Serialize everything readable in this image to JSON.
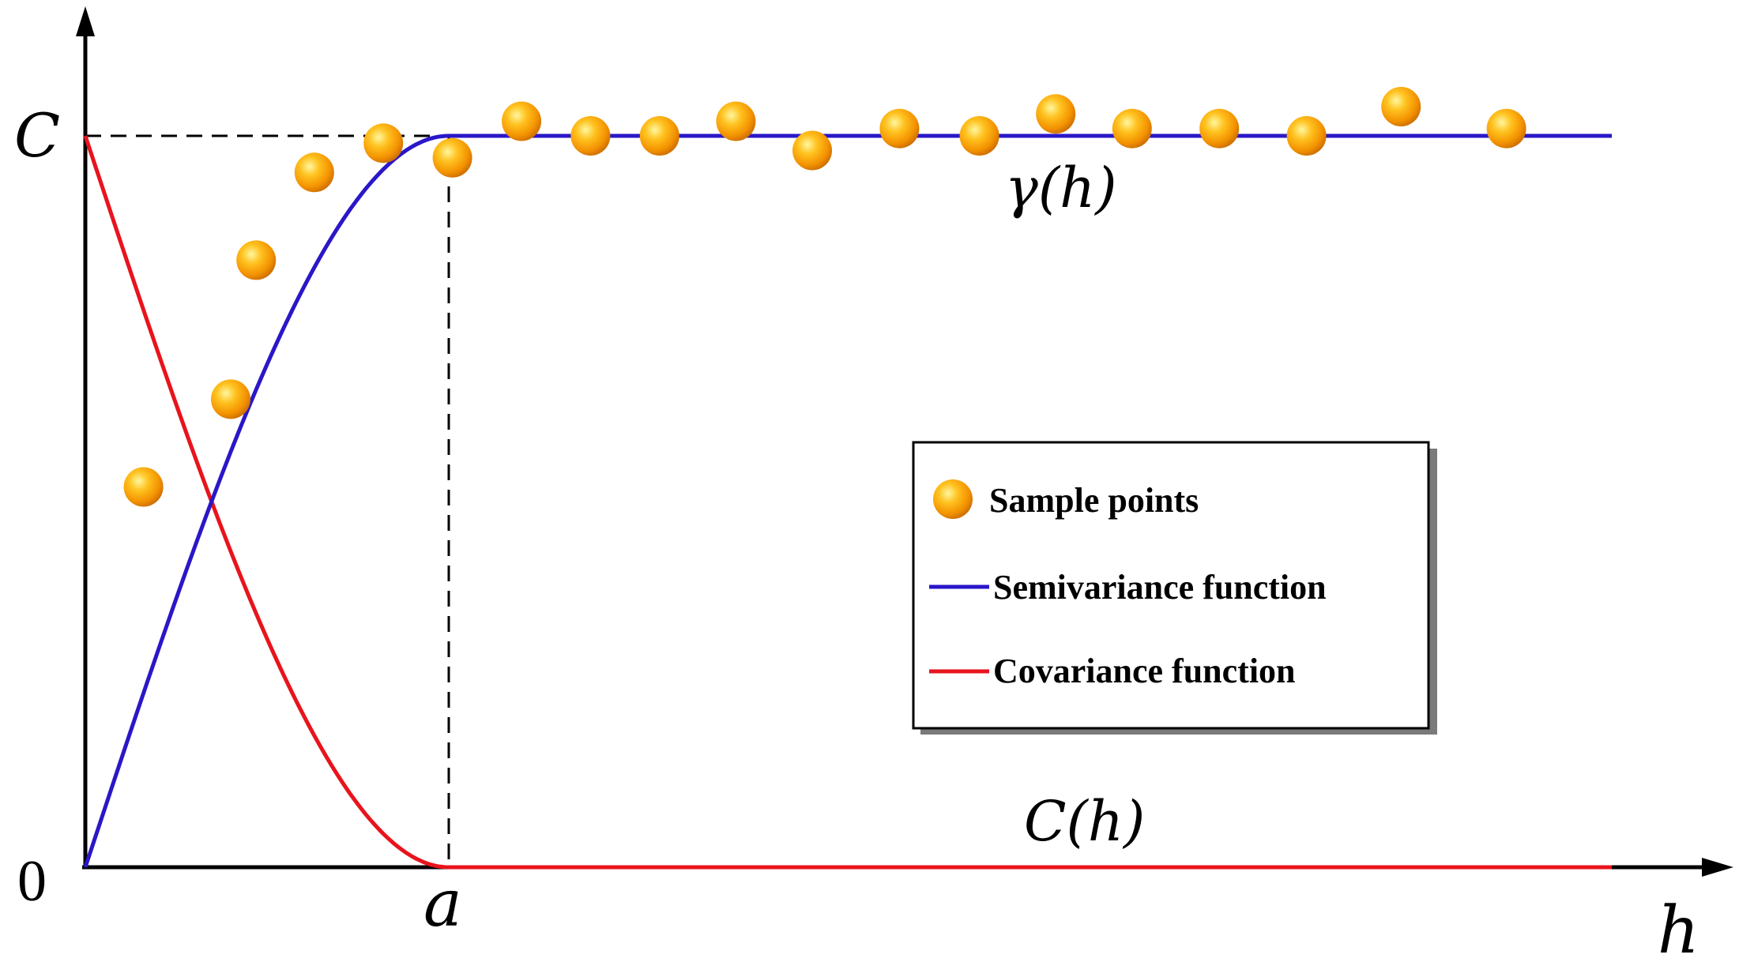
{
  "labels": {
    "y_max": "C",
    "origin": "0",
    "range": "a",
    "x_axis": "h",
    "semivariance_label": "γ(h)",
    "covariance_label": "C(h)"
  },
  "legend": {
    "items": [
      {
        "label": "Sample points",
        "kind": "marker",
        "color": "#f39200"
      },
      {
        "label": "Semivariance function",
        "kind": "line",
        "color": "#2a17c8"
      },
      {
        "label": "Covariance function",
        "kind": "line",
        "color": "#e8141c"
      }
    ]
  },
  "colors": {
    "semivariance": "#2a17c8",
    "covariance": "#e8141c",
    "sample_fill": "#f39200",
    "axis": "#000000"
  },
  "chart_data": {
    "type": "line",
    "sill": 1.0,
    "range": 1.0,
    "x_max": 4.2,
    "sample_points": [
      [
        0.16,
        0.52
      ],
      [
        0.4,
        0.64
      ],
      [
        0.47,
        0.83
      ],
      [
        0.63,
        0.95
      ],
      [
        0.82,
        0.99
      ],
      [
        1.01,
        0.97
      ],
      [
        1.2,
        1.02
      ],
      [
        1.39,
        1.0
      ],
      [
        1.58,
        1.0
      ],
      [
        1.79,
        1.02
      ],
      [
        2.0,
        0.98
      ],
      [
        2.24,
        1.01
      ],
      [
        2.46,
        1.0
      ],
      [
        2.67,
        1.03
      ],
      [
        2.88,
        1.01
      ],
      [
        3.12,
        1.01
      ],
      [
        3.36,
        1.0
      ],
      [
        3.62,
        1.04
      ],
      [
        3.91,
        1.01
      ]
    ]
  }
}
